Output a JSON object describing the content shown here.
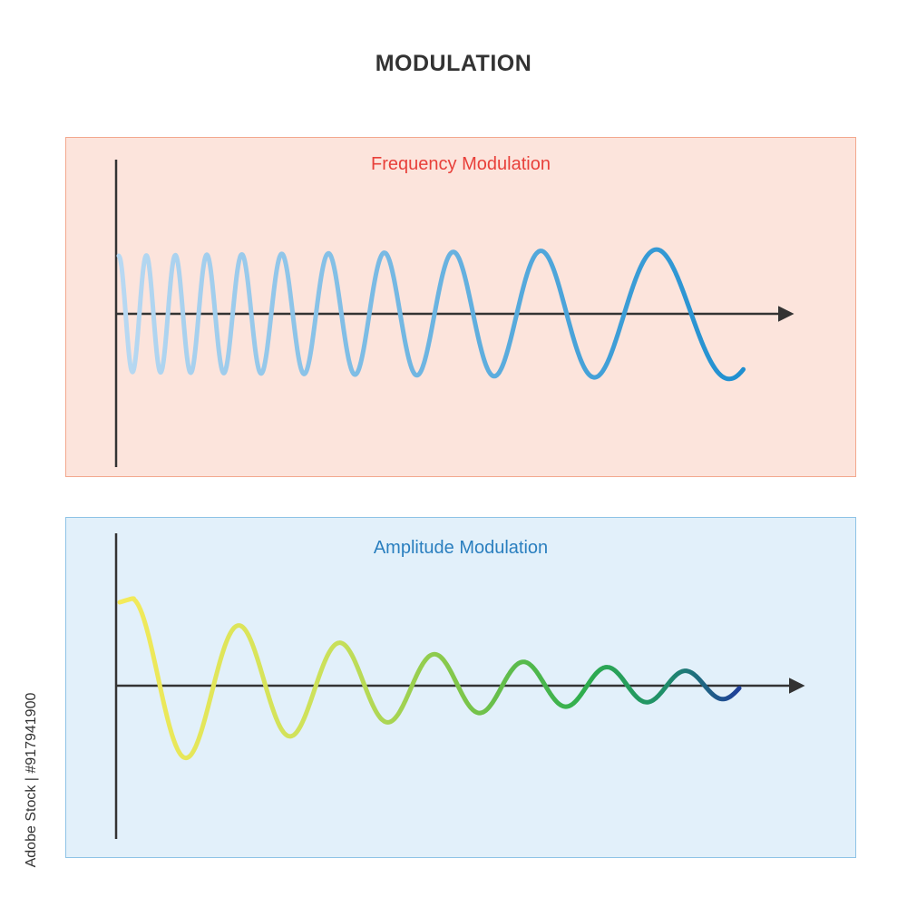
{
  "header": {
    "title": "MODULATION"
  },
  "panels": {
    "fm": {
      "label": "Frequency Modulation",
      "bg": "#fce4dc",
      "border": "#f3a88e",
      "label_color": "#e8403a",
      "wave_colors": [
        "#b9d9f2",
        "#1f8fd0"
      ]
    },
    "am": {
      "label": "Amplitude Modulation",
      "bg": "#e2f0fa",
      "border": "#8ec3e6",
      "label_color": "#2a7fbf",
      "wave_colors": [
        "#f4ea5a",
        "#c9e05a",
        "#7fc64a",
        "#2fae4e",
        "#1f8f6a",
        "#1f3f9a"
      ]
    }
  },
  "axis_color": "#333333",
  "watermark": {
    "text": "Adobe Stock | #917941900"
  }
}
